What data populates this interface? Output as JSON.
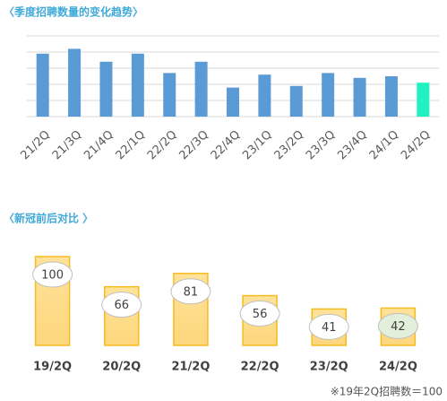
{
  "chart_data": [
    {
      "type": "bar",
      "title": "〈季度招聘数量的变化趋势〉",
      "categories": [
        "21/2Q",
        "21/3Q",
        "21/4Q",
        "22/1Q",
        "22/2Q",
        "22/3Q",
        "22/4Q",
        "23/1Q",
        "23/2Q",
        "23/3Q",
        "23/4Q",
        "24/1Q",
        "24/2Q"
      ],
      "values": [
        3.9,
        4.2,
        3.4,
        3.9,
        2.7,
        3.4,
        1.8,
        2.6,
        1.9,
        2.7,
        2.4,
        2.5,
        2.1
      ],
      "colors": [
        "#5b9bd5",
        "#5b9bd5",
        "#5b9bd5",
        "#5b9bd5",
        "#5b9bd5",
        "#5b9bd5",
        "#5b9bd5",
        "#5b9bd5",
        "#5b9bd5",
        "#5b9bd5",
        "#5b9bd5",
        "#5b9bd5",
        "#1ff2c0"
      ],
      "ylim": [
        0,
        5
      ],
      "yticks": [
        0,
        1,
        2,
        3,
        4,
        5
      ],
      "grid": true
    },
    {
      "type": "labeled-bar",
      "title": "〈新冠前后对比 〉",
      "categories": [
        "19/2Q",
        "20/2Q",
        "21/2Q",
        "22/2Q",
        "23/2Q",
        "24/2Q"
      ],
      "values": [
        100,
        66,
        81,
        56,
        41,
        42
      ],
      "color": "#fdd67c",
      "label_colors": [
        "#ffffff",
        "#ffffff",
        "#ffffff",
        "#ffffff",
        "#ffffff",
        "#e2efda"
      ],
      "ylim": [
        0,
        100
      ],
      "note": "※19年2Q招聘数＝100"
    }
  ]
}
